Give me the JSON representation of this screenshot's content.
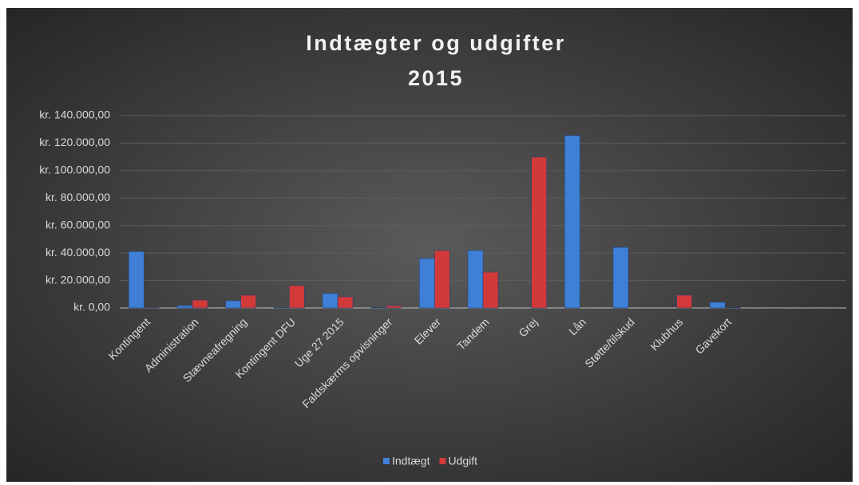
{
  "chart_data": {
    "type": "bar",
    "title": "Indtægter og udgifter",
    "subtitle": "2015",
    "categories": [
      "Kontingent",
      "Administration",
      "Stævneafregning",
      "Kontingent DFU",
      "Uge 27 2015",
      "Faldskærms opvisninger",
      "Elever",
      "Tandem",
      "Grej",
      "Lån",
      "Støtte/tilskud",
      "Klubhus",
      "Gavekort",
      null,
      null
    ],
    "series": [
      {
        "name": "Indtægt",
        "color": "#3f7fd6",
        "values": [
          41000,
          1700,
          5200,
          300,
          10500,
          300,
          36000,
          41800,
          0,
          125500,
          44100,
          0,
          4100,
          null,
          null
        ]
      },
      {
        "name": "Udgift",
        "color": "#d23a3a",
        "values": [
          500,
          5800,
          9300,
          16300,
          8100,
          1700,
          41800,
          26100,
          109800,
          0,
          0,
          9300,
          300,
          null,
          null
        ]
      }
    ],
    "ylim": [
      0,
      140000
    ],
    "yticks": [
      {
        "value": 0,
        "label": "kr. 0,00"
      },
      {
        "value": 20000,
        "label": "kr. 20.000,00"
      },
      {
        "value": 40000,
        "label": "kr. 40.000,00"
      },
      {
        "value": 60000,
        "label": "kr. 60.000,00"
      },
      {
        "value": 80000,
        "label": "kr. 80.000,00"
      },
      {
        "value": 100000,
        "label": "kr. 100.000,00"
      },
      {
        "value": 120000,
        "label": "kr. 120.000,00"
      },
      {
        "value": 140000,
        "label": "kr. 140.000,00"
      }
    ],
    "grid": true,
    "legend": "bottom"
  }
}
